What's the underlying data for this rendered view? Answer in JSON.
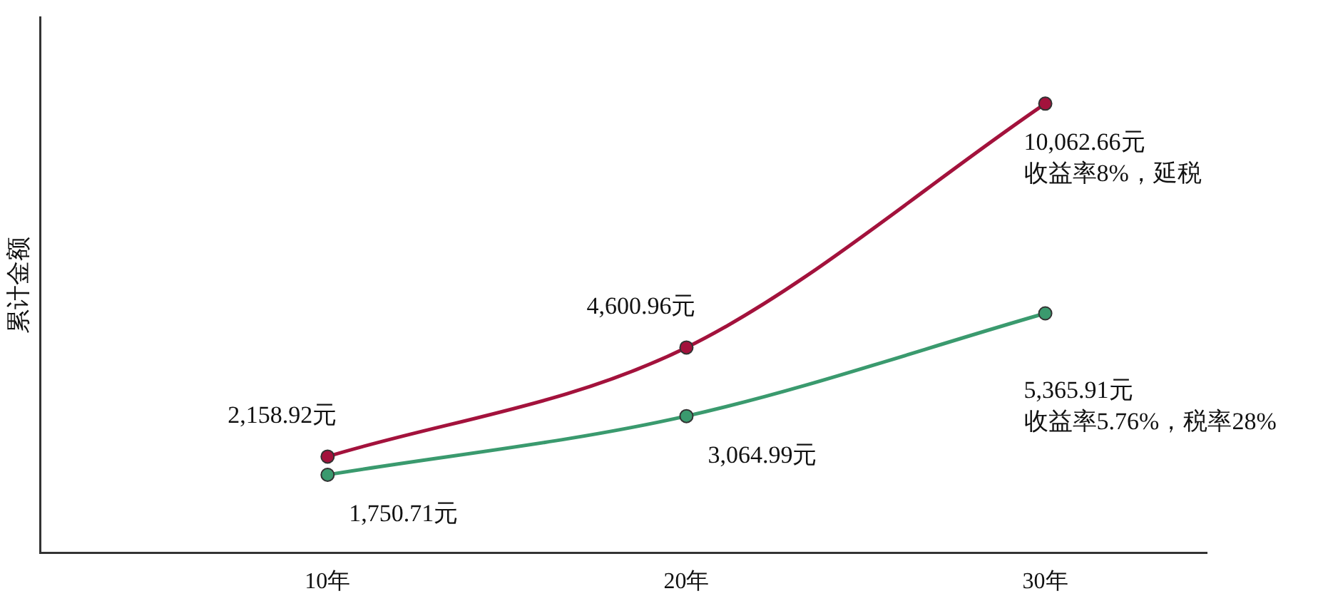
{
  "chart_data": {
    "type": "line",
    "ylabel": "累计金额",
    "x": [
      10,
      20,
      30
    ],
    "xlim": [
      2,
      34.5
    ],
    "xticks": [
      {
        "value": 10,
        "label": "10年"
      },
      {
        "value": 20,
        "label": "20年"
      },
      {
        "value": 30,
        "label": "30年"
      }
    ],
    "tick_labels": "x",
    "grid": false,
    "legend": false,
    "marker": "circle",
    "line_style": "solid",
    "series": [
      {
        "name": "收益率8%，延税",
        "color": "#a3123c",
        "values": [
          2158.92,
          4600.96,
          10062.66
        ],
        "value_labels": [
          "2,158.92元",
          "4,600.96元",
          "10,062.66元"
        ]
      },
      {
        "name": "收益率5.76%，税率28%",
        "color": "#3a9a6e",
        "values": [
          1750.71,
          3064.99,
          5365.91
        ],
        "value_labels": [
          "1,750.71元",
          "3,064.99元",
          "5,365.91元"
        ]
      }
    ]
  }
}
